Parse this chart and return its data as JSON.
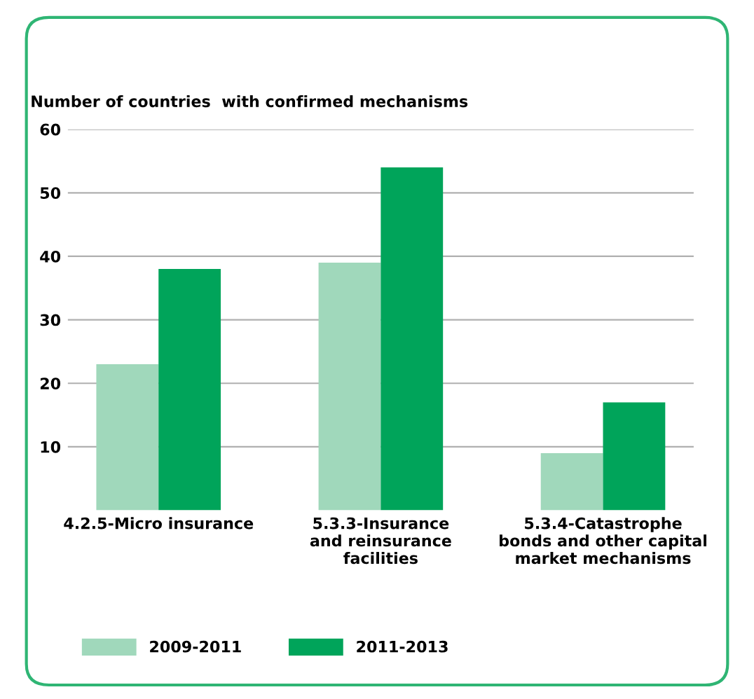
{
  "chart_data": {
    "type": "bar",
    "ylabel": "Number of countries  with confirmed mechanisms",
    "categories": [
      "4.2.5-Micro insurance",
      "5.3.3-Insurance\nand reinsurance\nfacilities",
      "5.3.4-Catastrophe\nbonds and other capital\nmarket mechanisms"
    ],
    "series": [
      {
        "name": "2009-2011",
        "color": "#a0d8bb",
        "values": [
          23,
          39,
          9
        ]
      },
      {
        "name": "2011-2013",
        "color": "#00a45a",
        "values": [
          38,
          54,
          17
        ]
      }
    ],
    "ylim": [
      0,
      60
    ],
    "yticks": [
      10,
      20,
      30,
      40,
      50,
      60
    ],
    "grid": "y",
    "legend": "bottom"
  }
}
